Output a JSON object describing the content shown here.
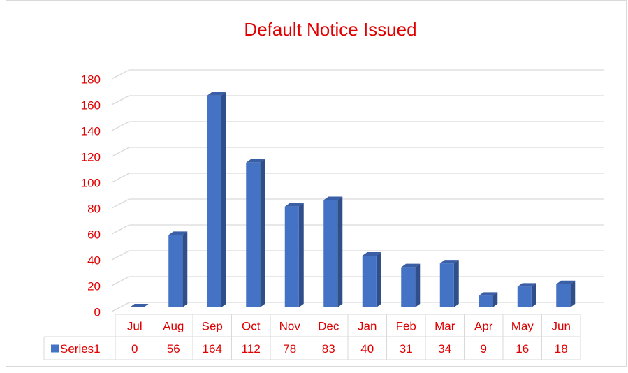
{
  "chart_data": {
    "type": "bar3d",
    "title": "Default Notice Issued",
    "categories": [
      "Jul",
      "Aug",
      "Sep",
      "Oct",
      "Nov",
      "Dec",
      "Jan",
      "Feb",
      "Mar",
      "Apr",
      "May",
      "Jun"
    ],
    "series": [
      {
        "name": "Series1",
        "color": "#4472c4",
        "values": [
          0,
          56,
          164,
          112,
          78,
          83,
          40,
          31,
          34,
          9,
          16,
          18
        ]
      }
    ],
    "ylim": [
      0,
      180
    ],
    "yticks": [
      0,
      20,
      40,
      60,
      80,
      100,
      120,
      140,
      160,
      180
    ],
    "grid": true,
    "data_table": true
  }
}
